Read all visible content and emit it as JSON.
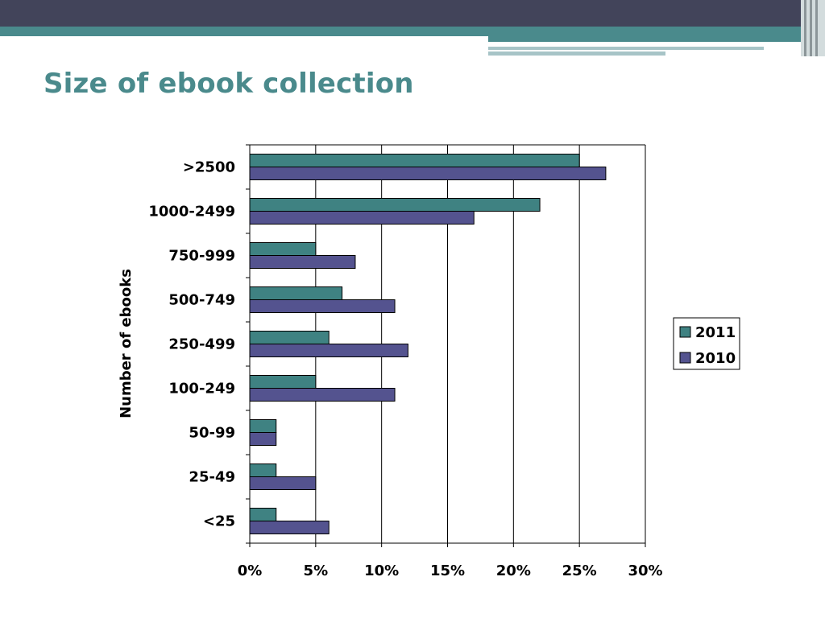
{
  "slide": {
    "title": "Size of ebook collection",
    "colors": {
      "header_dark": "#42445a",
      "header_teal": "#4a8a8c",
      "header_light": "#a7c4c7",
      "title": "#4a8a8c"
    }
  },
  "chart_data": {
    "type": "bar",
    "orientation": "horizontal",
    "title": "",
    "xlabel": "",
    "ylabel": "Number of ebooks",
    "categories": [
      ">2500",
      "1000-2499",
      "750-999",
      "500-749",
      "250-499",
      "100-249",
      "50-99",
      "25-49",
      "<25"
    ],
    "series": [
      {
        "name": "2011",
        "color": "#3f8282",
        "values": [
          25,
          22,
          5,
          7,
          6,
          5,
          2,
          2,
          2
        ]
      },
      {
        "name": "2010",
        "color": "#54538f",
        "values": [
          27,
          17,
          8,
          11,
          12,
          11,
          2,
          5,
          6
        ]
      }
    ],
    "xlim": [
      0,
      30
    ],
    "xticks": [
      0,
      5,
      10,
      15,
      20,
      25,
      30
    ],
    "xtick_labels": [
      "0%",
      "5%",
      "10%",
      "15%",
      "20%",
      "25%",
      "30%"
    ],
    "grid": true,
    "legend_position": "right"
  }
}
